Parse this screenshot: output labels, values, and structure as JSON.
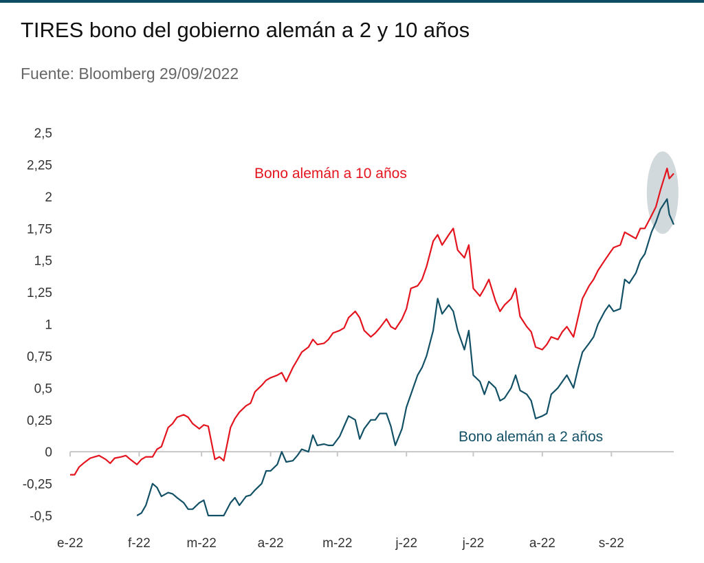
{
  "header": {
    "title": "TIRES bono del gobierno alemán a 2 y 10 años",
    "subtitle": "Fuente: Bloomberg 29/09/2022"
  },
  "colors": {
    "rule": "#0e4c66",
    "bund10": "#e3141e",
    "bund2": "#125066",
    "highlight": "#c9d2d6",
    "axis": "#c7c7c7"
  },
  "chart_data": {
    "type": "line",
    "ylim": [
      -0.5,
      2.5
    ],
    "y_ticks": [
      2.5,
      2.25,
      2,
      1.75,
      1.5,
      1.25,
      1,
      0.75,
      0.5,
      0.25,
      0,
      -0.25,
      -0.5
    ],
    "y_tick_labels": [
      "2,5",
      "2,25",
      "2",
      "1,75",
      "1,5",
      "1,25",
      "1",
      "0,75",
      "0,5",
      "0,25",
      "0",
      "-0,25",
      "-0,5"
    ],
    "x_tick_labels": [
      "e-22",
      "f-22",
      "m-22",
      "a-22",
      "m-22",
      "j-22",
      "j-22",
      "a-22",
      "s-22"
    ],
    "x_ticks": [
      "2022-01-01",
      "2022-02-01",
      "2022-03-01",
      "2022-04-01",
      "2022-05-01",
      "2022-06-01",
      "2022-07-01",
      "2022-08-01",
      "2022-09-01"
    ],
    "x_range": [
      "2022-01-01",
      "2022-09-29"
    ],
    "series": [
      {
        "name": "Bono alemán a 10 años",
        "color": "#e3141e",
        "points": [
          [
            "2022-01-01",
            -0.18
          ],
          [
            "2022-01-03",
            -0.18
          ],
          [
            "2022-01-05",
            -0.12
          ],
          [
            "2022-01-07",
            -0.09
          ],
          [
            "2022-01-10",
            -0.05
          ],
          [
            "2022-01-12",
            -0.04
          ],
          [
            "2022-01-14",
            -0.03
          ],
          [
            "2022-01-17",
            -0.06
          ],
          [
            "2022-01-19",
            -0.09
          ],
          [
            "2022-01-21",
            -0.05
          ],
          [
            "2022-01-24",
            -0.04
          ],
          [
            "2022-01-26",
            -0.03
          ],
          [
            "2022-01-28",
            -0.06
          ],
          [
            "2022-01-31",
            -0.1
          ],
          [
            "2022-02-02",
            -0.06
          ],
          [
            "2022-02-04",
            -0.04
          ],
          [
            "2022-02-07",
            -0.04
          ],
          [
            "2022-02-09",
            0.02
          ],
          [
            "2022-02-11",
            0.04
          ],
          [
            "2022-02-14",
            0.19
          ],
          [
            "2022-02-16",
            0.22
          ],
          [
            "2022-02-18",
            0.27
          ],
          [
            "2022-02-21",
            0.29
          ],
          [
            "2022-02-23",
            0.27
          ],
          [
            "2022-02-25",
            0.22
          ],
          [
            "2022-02-28",
            0.18
          ],
          [
            "2022-03-02",
            0.21
          ],
          [
            "2022-03-04",
            0.2
          ],
          [
            "2022-03-07",
            -0.06
          ],
          [
            "2022-03-09",
            -0.04
          ],
          [
            "2022-03-11",
            -0.07
          ],
          [
            "2022-03-14",
            0.19
          ],
          [
            "2022-03-16",
            0.26
          ],
          [
            "2022-03-18",
            0.31
          ],
          [
            "2022-03-21",
            0.36
          ],
          [
            "2022-03-23",
            0.38
          ],
          [
            "2022-03-25",
            0.47
          ],
          [
            "2022-03-28",
            0.52
          ],
          [
            "2022-03-30",
            0.56
          ],
          [
            "2022-04-01",
            0.58
          ],
          [
            "2022-04-04",
            0.6
          ],
          [
            "2022-04-06",
            0.62
          ],
          [
            "2022-04-08",
            0.55
          ],
          [
            "2022-04-11",
            0.66
          ],
          [
            "2022-04-13",
            0.72
          ],
          [
            "2022-04-15",
            0.78
          ],
          [
            "2022-04-18",
            0.82
          ],
          [
            "2022-04-20",
            0.88
          ],
          [
            "2022-04-22",
            0.84
          ],
          [
            "2022-04-25",
            0.85
          ],
          [
            "2022-04-27",
            0.88
          ],
          [
            "2022-04-29",
            0.93
          ],
          [
            "2022-05-02",
            0.95
          ],
          [
            "2022-05-04",
            0.97
          ],
          [
            "2022-05-06",
            1.05
          ],
          [
            "2022-05-09",
            1.1
          ],
          [
            "2022-05-11",
            1.05
          ],
          [
            "2022-05-13",
            0.95
          ],
          [
            "2022-05-16",
            0.9
          ],
          [
            "2022-05-18",
            0.93
          ],
          [
            "2022-05-20",
            0.97
          ],
          [
            "2022-05-23",
            1.04
          ],
          [
            "2022-05-25",
            0.98
          ],
          [
            "2022-05-27",
            0.96
          ],
          [
            "2022-05-30",
            1.04
          ],
          [
            "2022-06-01",
            1.12
          ],
          [
            "2022-06-03",
            1.28
          ],
          [
            "2022-06-06",
            1.3
          ],
          [
            "2022-06-08",
            1.35
          ],
          [
            "2022-06-10",
            1.45
          ],
          [
            "2022-06-13",
            1.65
          ],
          [
            "2022-06-15",
            1.7
          ],
          [
            "2022-06-17",
            1.62
          ],
          [
            "2022-06-20",
            1.7
          ],
          [
            "2022-06-22",
            1.75
          ],
          [
            "2022-06-24",
            1.58
          ],
          [
            "2022-06-27",
            1.52
          ],
          [
            "2022-06-29",
            1.62
          ],
          [
            "2022-07-01",
            1.28
          ],
          [
            "2022-07-04",
            1.22
          ],
          [
            "2022-07-06",
            1.28
          ],
          [
            "2022-07-08",
            1.35
          ],
          [
            "2022-07-11",
            1.18
          ],
          [
            "2022-07-13",
            1.1
          ],
          [
            "2022-07-15",
            1.15
          ],
          [
            "2022-07-18",
            1.2
          ],
          [
            "2022-07-20",
            1.28
          ],
          [
            "2022-07-22",
            1.06
          ],
          [
            "2022-07-25",
            0.98
          ],
          [
            "2022-07-27",
            0.94
          ],
          [
            "2022-07-29",
            0.82
          ],
          [
            "2022-08-01",
            0.8
          ],
          [
            "2022-08-03",
            0.84
          ],
          [
            "2022-08-05",
            0.9
          ],
          [
            "2022-08-08",
            0.88
          ],
          [
            "2022-08-10",
            0.94
          ],
          [
            "2022-08-12",
            0.98
          ],
          [
            "2022-08-15",
            0.9
          ],
          [
            "2022-08-17",
            1.05
          ],
          [
            "2022-08-19",
            1.2
          ],
          [
            "2022-08-22",
            1.3
          ],
          [
            "2022-08-24",
            1.35
          ],
          [
            "2022-08-26",
            1.42
          ],
          [
            "2022-08-29",
            1.5
          ],
          [
            "2022-08-31",
            1.55
          ],
          [
            "2022-09-02",
            1.6
          ],
          [
            "2022-09-05",
            1.62
          ],
          [
            "2022-09-07",
            1.72
          ],
          [
            "2022-09-09",
            1.7
          ],
          [
            "2022-09-12",
            1.67
          ],
          [
            "2022-09-14",
            1.75
          ],
          [
            "2022-09-16",
            1.75
          ],
          [
            "2022-09-19",
            1.85
          ],
          [
            "2022-09-21",
            1.92
          ],
          [
            "2022-09-23",
            2.05
          ],
          [
            "2022-09-26",
            2.22
          ],
          [
            "2022-09-27",
            2.14
          ],
          [
            "2022-09-29",
            2.18
          ]
        ]
      },
      {
        "name": "Bono alemán a 2 años",
        "color": "#125066",
        "points": [
          [
            "2022-01-31",
            -0.5
          ],
          [
            "2022-02-02",
            -0.48
          ],
          [
            "2022-02-04",
            -0.42
          ],
          [
            "2022-02-07",
            -0.25
          ],
          [
            "2022-02-09",
            -0.28
          ],
          [
            "2022-02-11",
            -0.35
          ],
          [
            "2022-02-14",
            -0.32
          ],
          [
            "2022-02-16",
            -0.33
          ],
          [
            "2022-02-18",
            -0.36
          ],
          [
            "2022-02-21",
            -0.4
          ],
          [
            "2022-02-23",
            -0.45
          ],
          [
            "2022-02-25",
            -0.45
          ],
          [
            "2022-02-28",
            -0.4
          ],
          [
            "2022-03-02",
            -0.38
          ],
          [
            "2022-03-04",
            -0.5
          ],
          [
            "2022-03-11",
            -0.5
          ],
          [
            "2022-03-14",
            -0.4
          ],
          [
            "2022-03-16",
            -0.36
          ],
          [
            "2022-03-18",
            -0.42
          ],
          [
            "2022-03-21",
            -0.35
          ],
          [
            "2022-03-23",
            -0.34
          ],
          [
            "2022-03-25",
            -0.3
          ],
          [
            "2022-03-28",
            -0.25
          ],
          [
            "2022-03-30",
            -0.15
          ],
          [
            "2022-04-01",
            -0.15
          ],
          [
            "2022-04-04",
            -0.1
          ],
          [
            "2022-04-06",
            0.0
          ],
          [
            "2022-04-08",
            -0.08
          ],
          [
            "2022-04-11",
            -0.07
          ],
          [
            "2022-04-13",
            -0.03
          ],
          [
            "2022-04-15",
            0.02
          ],
          [
            "2022-04-18",
            0.0
          ],
          [
            "2022-04-20",
            0.13
          ],
          [
            "2022-04-22",
            0.05
          ],
          [
            "2022-04-25",
            0.06
          ],
          [
            "2022-04-27",
            0.05
          ],
          [
            "2022-04-29",
            0.05
          ],
          [
            "2022-05-02",
            0.12
          ],
          [
            "2022-05-04",
            0.2
          ],
          [
            "2022-05-06",
            0.28
          ],
          [
            "2022-05-09",
            0.25
          ],
          [
            "2022-05-11",
            0.1
          ],
          [
            "2022-05-13",
            0.18
          ],
          [
            "2022-05-16",
            0.25
          ],
          [
            "2022-05-18",
            0.25
          ],
          [
            "2022-05-20",
            0.3
          ],
          [
            "2022-05-23",
            0.3
          ],
          [
            "2022-05-25",
            0.2
          ],
          [
            "2022-05-27",
            0.05
          ],
          [
            "2022-05-30",
            0.18
          ],
          [
            "2022-06-01",
            0.35
          ],
          [
            "2022-06-03",
            0.45
          ],
          [
            "2022-06-06",
            0.6
          ],
          [
            "2022-06-08",
            0.66
          ],
          [
            "2022-06-10",
            0.75
          ],
          [
            "2022-06-13",
            0.95
          ],
          [
            "2022-06-15",
            1.2
          ],
          [
            "2022-06-17",
            1.08
          ],
          [
            "2022-06-20",
            1.15
          ],
          [
            "2022-06-22",
            1.1
          ],
          [
            "2022-06-24",
            0.95
          ],
          [
            "2022-06-27",
            0.8
          ],
          [
            "2022-06-29",
            0.95
          ],
          [
            "2022-07-01",
            0.6
          ],
          [
            "2022-07-04",
            0.55
          ],
          [
            "2022-07-06",
            0.45
          ],
          [
            "2022-07-08",
            0.55
          ],
          [
            "2022-07-11",
            0.5
          ],
          [
            "2022-07-13",
            0.4
          ],
          [
            "2022-07-15",
            0.42
          ],
          [
            "2022-07-18",
            0.5
          ],
          [
            "2022-07-20",
            0.6
          ],
          [
            "2022-07-22",
            0.48
          ],
          [
            "2022-07-25",
            0.45
          ],
          [
            "2022-07-27",
            0.4
          ],
          [
            "2022-07-29",
            0.26
          ],
          [
            "2022-08-01",
            0.28
          ],
          [
            "2022-08-03",
            0.3
          ],
          [
            "2022-08-05",
            0.45
          ],
          [
            "2022-08-08",
            0.5
          ],
          [
            "2022-08-10",
            0.55
          ],
          [
            "2022-08-12",
            0.6
          ],
          [
            "2022-08-15",
            0.5
          ],
          [
            "2022-08-17",
            0.65
          ],
          [
            "2022-08-19",
            0.78
          ],
          [
            "2022-08-22",
            0.85
          ],
          [
            "2022-08-24",
            0.9
          ],
          [
            "2022-08-26",
            1.0
          ],
          [
            "2022-08-29",
            1.1
          ],
          [
            "2022-08-31",
            1.15
          ],
          [
            "2022-09-02",
            1.1
          ],
          [
            "2022-09-05",
            1.12
          ],
          [
            "2022-09-07",
            1.35
          ],
          [
            "2022-09-09",
            1.32
          ],
          [
            "2022-09-12",
            1.4
          ],
          [
            "2022-09-14",
            1.5
          ],
          [
            "2022-09-16",
            1.55
          ],
          [
            "2022-09-19",
            1.72
          ],
          [
            "2022-09-21",
            1.8
          ],
          [
            "2022-09-23",
            1.9
          ],
          [
            "2022-09-26",
            1.98
          ],
          [
            "2022-09-27",
            1.86
          ],
          [
            "2022-09-29",
            1.78
          ]
        ]
      }
    ],
    "annotations": [
      {
        "text": "Bono alemán a 10 años",
        "series": "Bono alemán a 10 años"
      },
      {
        "text": "Bono alemán a 2 años",
        "series": "Bono alemán a 2 años"
      }
    ],
    "grid": false,
    "legend": "none"
  }
}
